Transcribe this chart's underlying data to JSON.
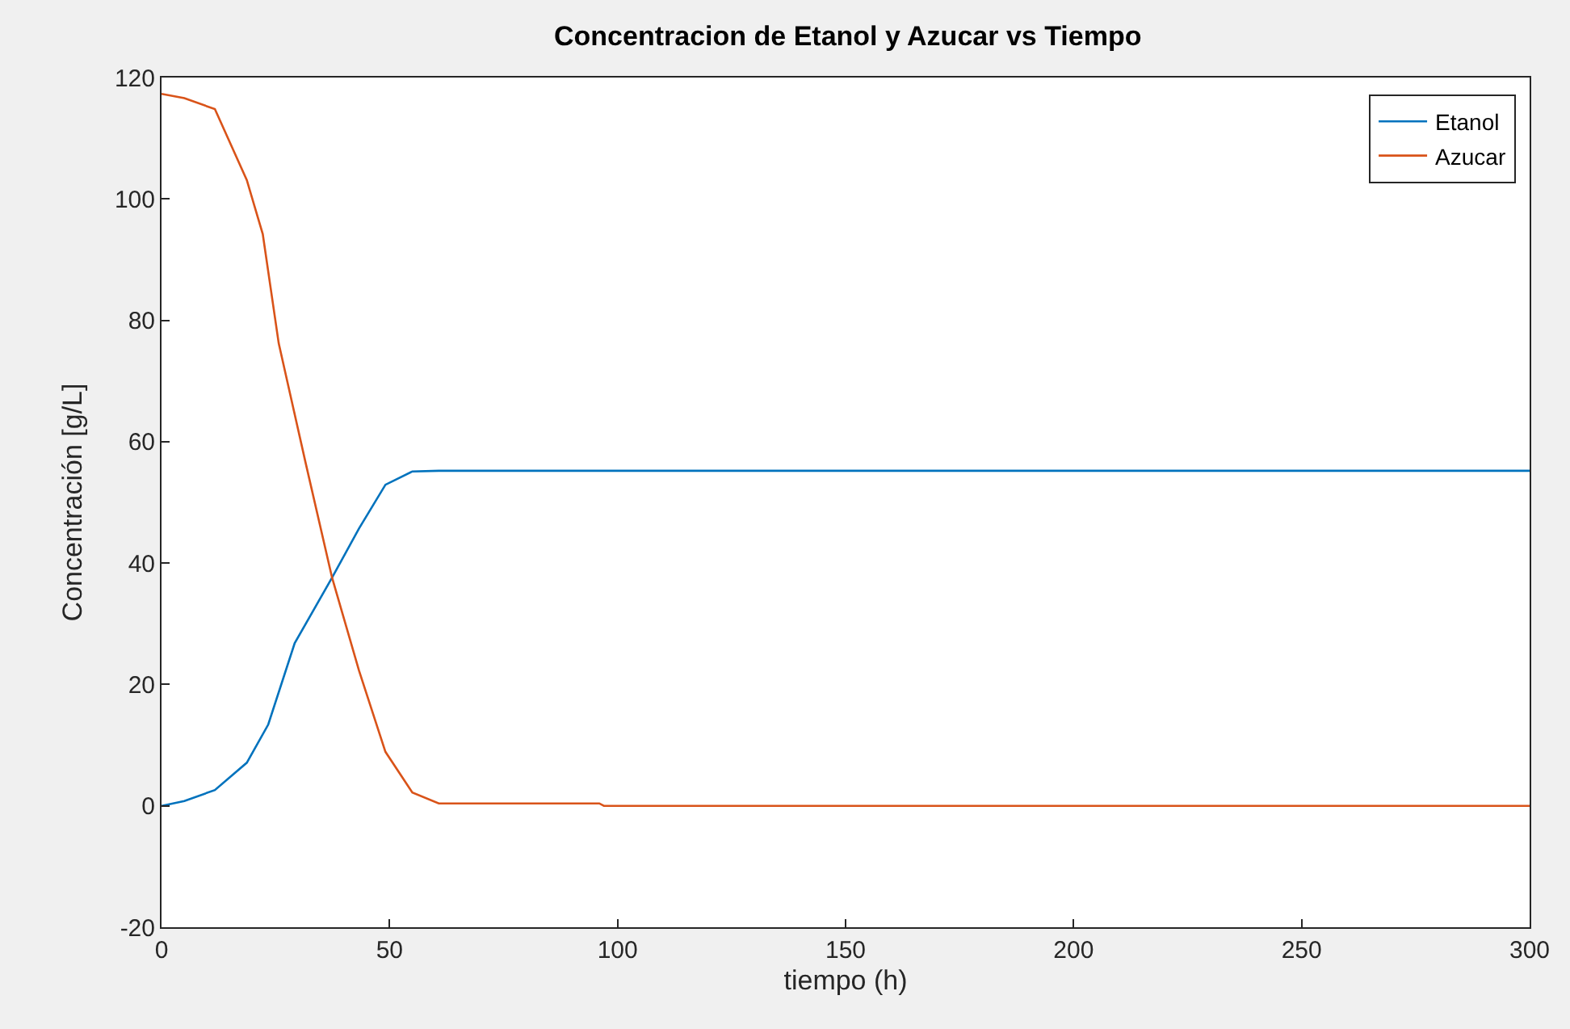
{
  "chart_data": {
    "type": "line",
    "title": "Concentracion de Etanol y Azucar vs Tiempo",
    "xlabel": "tiempo (h)",
    "ylabel": "Concentración [g/L]",
    "xlim": [
      0,
      300
    ],
    "xticks": [
      0,
      50,
      100,
      150,
      200,
      250,
      300
    ],
    "ylim": [
      -20,
      120
    ],
    "yticks": [
      -20,
      0,
      20,
      40,
      60,
      80,
      100,
      120
    ],
    "legend": "top right",
    "marker": "none",
    "line_style": "solid",
    "series": [
      {
        "name": "Etanol",
        "color": "#0072bd",
        "x": [
          0,
          5,
          11.7,
          18.7,
          23.4,
          29.2,
          37.4,
          43.3,
          49.1,
          55,
          60.8,
          100,
          200,
          300
        ],
        "values": [
          0,
          0.8,
          2.6,
          7.1,
          13.4,
          26.8,
          37.6,
          45.7,
          52.9,
          55.1,
          55.2,
          55.2,
          55.2,
          55.2
        ]
      },
      {
        "name": "Azucar",
        "color": "#d95319",
        "x": [
          0,
          5,
          11.7,
          18.7,
          22.2,
          25.7,
          31.6,
          37.4,
          43.3,
          49.1,
          55,
          60.8,
          96,
          97,
          200,
          300
        ],
        "values": [
          117.3,
          116.6,
          114.8,
          103.1,
          94.2,
          76.2,
          56.5,
          37.6,
          22.3,
          8.9,
          2.2,
          0.4,
          0.4,
          0,
          0,
          0
        ]
      }
    ]
  }
}
